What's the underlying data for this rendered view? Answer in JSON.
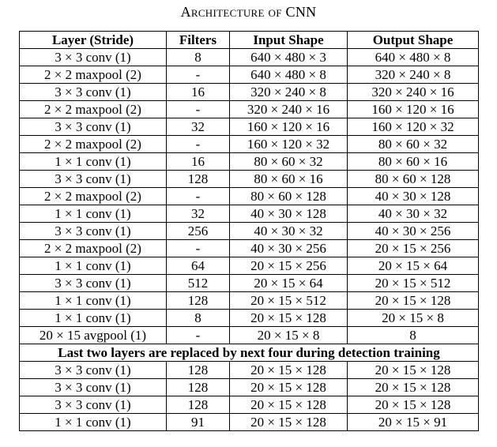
{
  "caption": "Architecture of CNN",
  "headers": [
    "Layer (Stride)",
    "Filters",
    "Input Shape",
    "Output Shape"
  ],
  "rows": [
    [
      "3 × 3 conv (1)",
      "8",
      "640 × 480 × 3",
      "640 × 480 × 8"
    ],
    [
      "2 × 2 maxpool (2)",
      "-",
      "640 × 480 × 8",
      "320 × 240 × 8"
    ],
    [
      "3 × 3 conv (1)",
      "16",
      "320 × 240 × 8",
      "320 × 240 × 16"
    ],
    [
      "2 × 2 maxpool (2)",
      "-",
      "320 × 240 × 16",
      "160 × 120 × 16"
    ],
    [
      "3 × 3 conv (1)",
      "32",
      "160 × 120 × 16",
      "160 × 120 × 32"
    ],
    [
      "2 × 2 maxpool (2)",
      "-",
      "160 × 120 × 32",
      "80 × 60 × 32"
    ],
    [
      "1 × 1 conv (1)",
      "16",
      "80 × 60 × 32",
      "80 × 60 × 16"
    ],
    [
      "3 × 3 conv (1)",
      "128",
      "80 × 60 × 16",
      "80 × 60 × 128"
    ],
    [
      "2 × 2 maxpool (2)",
      "-",
      "80 × 60 × 128",
      "40 × 30 × 128"
    ],
    [
      "1 × 1 conv (1)",
      "32",
      "40 × 30 × 128",
      "40 × 30 × 32"
    ],
    [
      "3 × 3 conv (1)",
      "256",
      "40 × 30 × 32",
      "40 × 30 × 256"
    ],
    [
      "2 × 2 maxpool (2)",
      "-",
      "40 × 30 × 256",
      "20 × 15 × 256"
    ],
    [
      "1 × 1 conv (1)",
      "64",
      "20 × 15 × 256",
      "20 × 15 × 64"
    ],
    [
      "3 × 3 conv (1)",
      "512",
      "20 × 15 × 64",
      "20 × 15 × 512"
    ],
    [
      "1 × 1 conv (1)",
      "128",
      "20 × 15 × 512",
      "20 × 15 × 128"
    ],
    [
      "1 × 1 conv (1)",
      "8",
      "20 × 15 × 128",
      "20 × 15 × 8"
    ],
    [
      "20 × 15 avgpool (1)",
      "-",
      "20 × 15 × 8",
      "8"
    ]
  ],
  "note": "Last two layers are replaced by next four during detection training",
  "detection_rows": [
    [
      "3 × 3 conv (1)",
      "128",
      "20 × 15 × 128",
      "20 × 15 × 128"
    ],
    [
      "3 × 3 conv (1)",
      "128",
      "20 × 15 × 128",
      "20 × 15 × 128"
    ],
    [
      "3 × 3 conv (1)",
      "128",
      "20 × 15 × 128",
      "20 × 15 × 128"
    ],
    [
      "1 × 1 conv (1)",
      "91",
      "20 × 15 × 128",
      "20 × 15 × 91"
    ]
  ]
}
